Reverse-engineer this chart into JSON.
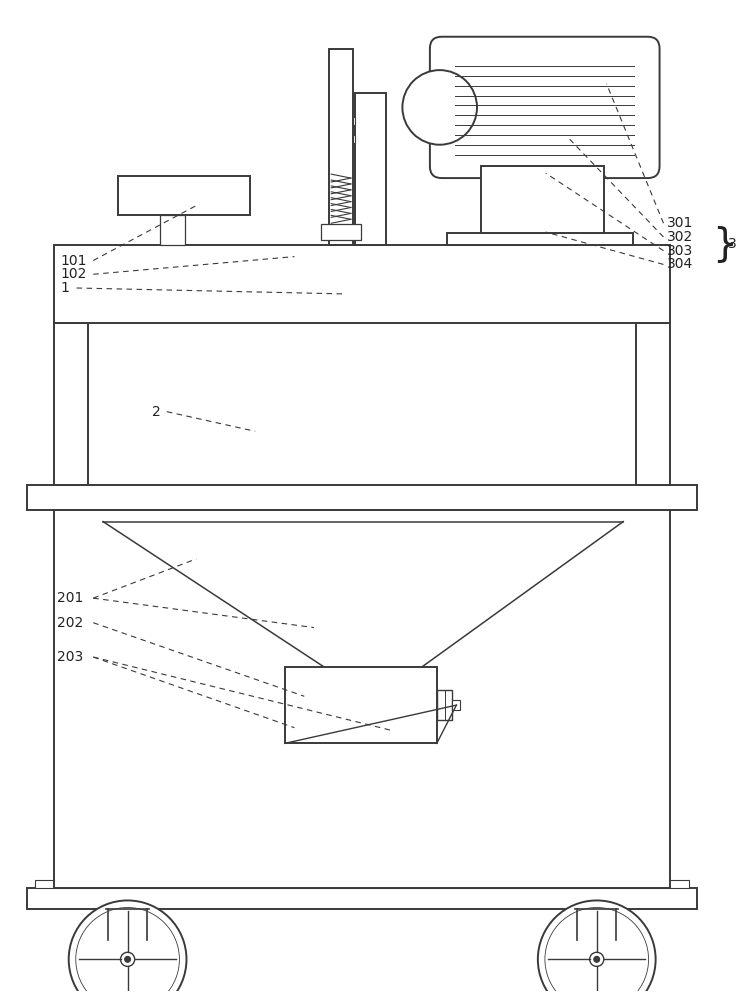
{
  "bg_color": "#ffffff",
  "lc": "#3a3a3a",
  "lw": 1.4,
  "fig_w": 7.38,
  "fig_h": 10.0
}
